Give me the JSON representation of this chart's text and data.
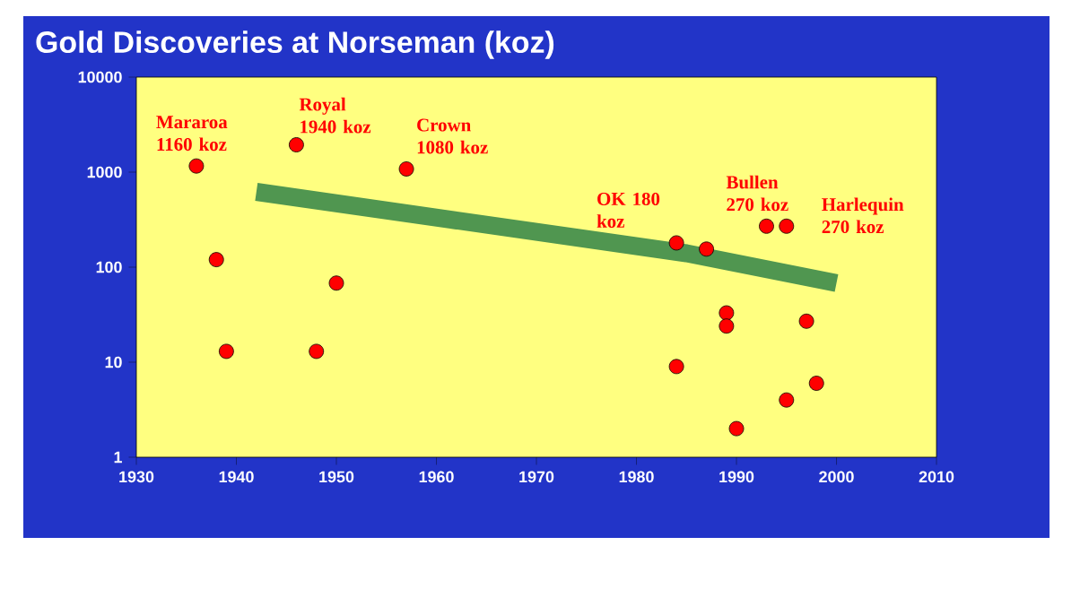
{
  "chart_data": {
    "type": "scatter",
    "title": "Gold Discoveries at Norseman (koz)",
    "x": [
      1936,
      1938,
      1939,
      1946,
      1948,
      1950,
      1957,
      1984,
      1984,
      1987,
      1989,
      1989,
      1990,
      1993,
      1995,
      1995,
      1997,
      1998
    ],
    "series": [
      {
        "type": "line",
        "marker": "none",
        "color": "#509650",
        "x": [
          1942,
          1985,
          2000
        ],
        "values": [
          620,
          140,
          68
        ]
      },
      {
        "marker": "circle",
        "color": "#ff0000",
        "values": [
          1160,
          120,
          13,
          1940,
          13,
          68,
          1080,
          180,
          9,
          155,
          33,
          24,
          2,
          270,
          270,
          4,
          27,
          6
        ]
      }
    ],
    "log": "y",
    "xlim": [
      1930,
      2010
    ],
    "ylim": [
      1,
      10000
    ],
    "xticks": [
      1930,
      1940,
      1950,
      1960,
      1970,
      1980,
      1990,
      2000,
      2010
    ],
    "yticks": [
      1,
      10,
      100,
      1000,
      10000
    ],
    "annotations": [
      {
        "text": "Mararoa 1160 koz",
        "x": 1936,
        "y": 1160
      },
      {
        "text": "Royal 1940 koz",
        "x": 1946,
        "y": 1940
      },
      {
        "text": "Crown 1080 koz",
        "x": 1957,
        "y": 1080
      },
      {
        "text": "OK 180 koz",
        "x": 1984,
        "y": 180
      },
      {
        "text": "Bullen 270 koz",
        "x": 1993,
        "y": 270
      },
      {
        "text": "Harlequin 270 koz",
        "x": 1995,
        "y": 270
      }
    ]
  }
}
